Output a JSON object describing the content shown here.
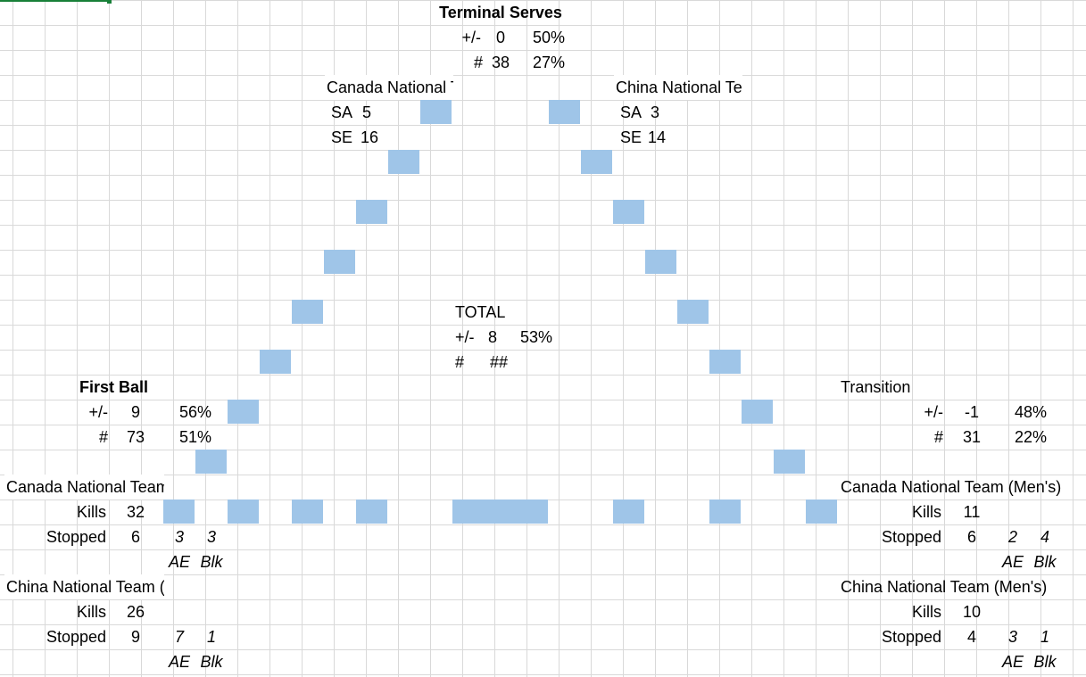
{
  "terminal_serves": {
    "title": "Terminal Serves",
    "pm_label": "+/-",
    "pm_value": "0",
    "pm_pct": "50%",
    "n_label": "#",
    "n_value": "38",
    "n_pct": "27%"
  },
  "serve_left": {
    "team": "Canada National Team (Men's)",
    "sa_label": "SA",
    "sa_value": "5",
    "se_label": "SE",
    "se_value": "16"
  },
  "serve_right": {
    "team": "China National Team (Men's)",
    "sa_label": "SA",
    "sa_value": "3",
    "se_label": "SE",
    "se_value": "14"
  },
  "total": {
    "title": "TOTAL",
    "pm_label": "+/-",
    "pm_value": "8",
    "pm_pct": "53%",
    "n_label": "#",
    "n_value": "##"
  },
  "first_ball": {
    "title": "First Ball",
    "pm_label": "+/-",
    "pm_value": "9",
    "pm_pct": "56%",
    "n_label": "#",
    "n_value": "73",
    "n_pct": "51%"
  },
  "transition": {
    "title": "Transition",
    "pm_label": "+/-",
    "pm_value": "-1",
    "pm_pct": "48%",
    "n_label": "#",
    "n_value": "31",
    "n_pct": "22%"
  },
  "first_ball_teams": [
    {
      "team": "Canada National Team (Men's)",
      "kills_label": "Kills",
      "kills": "32",
      "stopped_label": "Stopped",
      "stopped": "6",
      "ae": "3",
      "blk": "3",
      "ae_label": "AE",
      "blk_label": "Blk"
    },
    {
      "team": "China National Team (Men's)",
      "kills_label": "Kills",
      "kills": "26",
      "stopped_label": "Stopped",
      "stopped": "9",
      "ae": "7",
      "blk": "1",
      "ae_label": "AE",
      "blk_label": "Blk"
    }
  ],
  "transition_teams": [
    {
      "team": "Canada National Team (Men's)",
      "kills_label": "Kills",
      "kills": "11",
      "stopped_label": "Stopped",
      "stopped": "6",
      "ae": "2",
      "blk": "4",
      "ae_label": "AE",
      "blk_label": "Blk"
    },
    {
      "team": "China National Team (Men's)",
      "kills_label": "Kills",
      "kills": "10",
      "stopped_label": "Stopped",
      "stopped": "4",
      "ae": "3",
      "blk": "1",
      "ae_label": "AE",
      "blk_label": "Blk"
    }
  ],
  "colors": {
    "fill": "#9fc5e8",
    "grid": "#d9d9d9",
    "selection": "#188038"
  }
}
